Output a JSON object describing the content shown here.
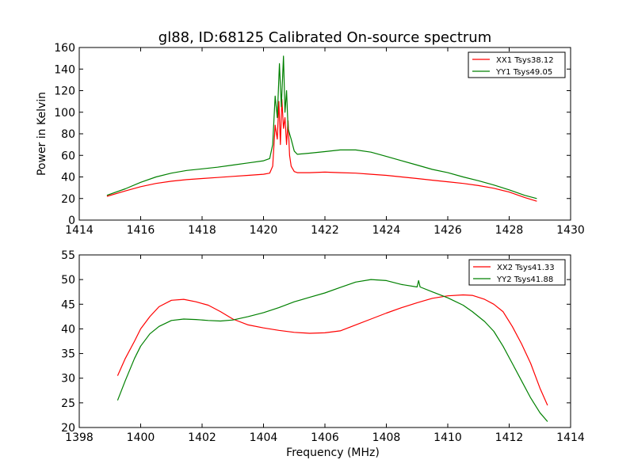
{
  "figure_title": "gl88, ID:68125 Calibrated On-source spectrum",
  "chart_data": [
    {
      "type": "line",
      "title": "gl88, ID:68125 Calibrated On-source spectrum",
      "xlabel": "",
      "ylabel": "Power in Kelvin",
      "xlim": [
        1414,
        1430
      ],
      "ylim": [
        0,
        160
      ],
      "xticks": [
        1414,
        1416,
        1418,
        1420,
        1422,
        1424,
        1426,
        1428,
        1430
      ],
      "yticks": [
        0,
        20,
        40,
        60,
        80,
        100,
        120,
        140,
        160
      ],
      "grid": false,
      "legend_position": "top-right",
      "series": [
        {
          "name": "XX1 Tsys38.12",
          "color": "#ff0000",
          "x": [
            1414.9,
            1415.5,
            1416.0,
            1416.5,
            1417.0,
            1417.5,
            1418.0,
            1418.5,
            1419.0,
            1419.5,
            1420.0,
            1420.2,
            1420.3,
            1420.38,
            1420.45,
            1420.5,
            1420.55,
            1420.6,
            1420.65,
            1420.7,
            1420.75,
            1420.8,
            1420.85,
            1420.9,
            1421.0,
            1421.1,
            1421.5,
            1422.0,
            1422.5,
            1423.0,
            1423.5,
            1424.0,
            1424.5,
            1425.0,
            1425.5,
            1426.0,
            1426.5,
            1427.0,
            1427.5,
            1428.0,
            1428.5,
            1428.9
          ],
          "y": [
            22,
            27,
            31,
            34,
            36,
            37.5,
            38.5,
            39.5,
            40.5,
            41.5,
            42.5,
            43.5,
            50,
            88,
            75,
            110,
            70,
            112,
            85,
            95,
            70,
            92,
            60,
            50,
            45,
            44,
            44,
            44.5,
            44,
            43.5,
            42.5,
            41.5,
            40,
            38.5,
            37,
            35.5,
            34,
            32,
            29.5,
            26,
            21,
            17.5
          ]
        },
        {
          "name": "YY1 Tsys49.05",
          "color": "#008000",
          "x": [
            1414.9,
            1415.5,
            1416.0,
            1416.5,
            1417.0,
            1417.5,
            1418.0,
            1418.5,
            1419.0,
            1419.5,
            1420.0,
            1420.2,
            1420.3,
            1420.38,
            1420.45,
            1420.52,
            1420.58,
            1420.65,
            1420.7,
            1420.75,
            1420.8,
            1420.85,
            1420.9,
            1421.0,
            1421.1,
            1421.5,
            1422.0,
            1422.5,
            1423.0,
            1423.5,
            1424.0,
            1424.5,
            1425.0,
            1425.5,
            1426.0,
            1426.5,
            1427.0,
            1427.5,
            1428.0,
            1428.5,
            1428.9
          ],
          "y": [
            23,
            29,
            35,
            40,
            43.5,
            46,
            47.5,
            49,
            51,
            53,
            55,
            57,
            70,
            115,
            95,
            145,
            105,
            152,
            100,
            120,
            85,
            80,
            75,
            64,
            61,
            62,
            63.5,
            65,
            65,
            63,
            59,
            55,
            51,
            47,
            44,
            40,
            36.5,
            32.5,
            28,
            23,
            20
          ]
        }
      ]
    },
    {
      "type": "line",
      "title": "",
      "xlabel": "Frequency (MHz)",
      "ylabel": "",
      "xlim": [
        1398,
        1414
      ],
      "ylim": [
        20,
        55
      ],
      "xticks": [
        1398,
        1400,
        1402,
        1404,
        1406,
        1408,
        1410,
        1412,
        1414
      ],
      "yticks": [
        20,
        25,
        30,
        35,
        40,
        45,
        50,
        55
      ],
      "grid": false,
      "legend_position": "top-right",
      "series": [
        {
          "name": "XX2 Tsys41.33",
          "color": "#ff0000",
          "x": [
            1399.25,
            1399.5,
            1399.8,
            1400.0,
            1400.3,
            1400.6,
            1401.0,
            1401.4,
            1401.8,
            1402.2,
            1402.6,
            1403.0,
            1403.5,
            1404.0,
            1404.5,
            1405.0,
            1405.5,
            1406.0,
            1406.5,
            1407.0,
            1407.5,
            1408.0,
            1408.5,
            1409.0,
            1409.5,
            1410.0,
            1410.5,
            1410.8,
            1411.2,
            1411.5,
            1411.8,
            1412.1,
            1412.4,
            1412.7,
            1413.0,
            1413.25
          ],
          "y": [
            30.5,
            34,
            37.5,
            40,
            42.5,
            44.5,
            45.8,
            46,
            45.5,
            44.8,
            43.5,
            42,
            40.8,
            40.2,
            39.7,
            39.3,
            39.1,
            39.2,
            39.6,
            40.8,
            42,
            43.2,
            44.3,
            45.3,
            46.2,
            46.7,
            46.9,
            46.8,
            46,
            45,
            43.5,
            40.5,
            37,
            33,
            28,
            24.5
          ]
        },
        {
          "name": "YY2 Tsys41.88",
          "color": "#008000",
          "x": [
            1399.25,
            1399.5,
            1399.8,
            1400.0,
            1400.3,
            1400.6,
            1401.0,
            1401.4,
            1401.8,
            1402.2,
            1402.6,
            1403.0,
            1403.5,
            1404.0,
            1404.5,
            1405.0,
            1405.5,
            1406.0,
            1406.5,
            1407.0,
            1407.5,
            1408.0,
            1408.5,
            1409.0,
            1409.05,
            1409.1,
            1409.5,
            1410.0,
            1410.5,
            1410.8,
            1411.2,
            1411.5,
            1411.8,
            1412.1,
            1412.4,
            1412.7,
            1413.0,
            1413.25
          ],
          "y": [
            25.5,
            29.5,
            34,
            36.5,
            39,
            40.5,
            41.7,
            42,
            41.9,
            41.7,
            41.6,
            41.8,
            42.5,
            43.3,
            44.3,
            45.5,
            46.4,
            47.3,
            48.4,
            49.5,
            50,
            49.8,
            49,
            48.5,
            49.8,
            48.5,
            47.5,
            46.3,
            44.8,
            43.5,
            41.5,
            39.5,
            36.5,
            33,
            29.5,
            26,
            23,
            21.2
          ]
        }
      ]
    }
  ]
}
